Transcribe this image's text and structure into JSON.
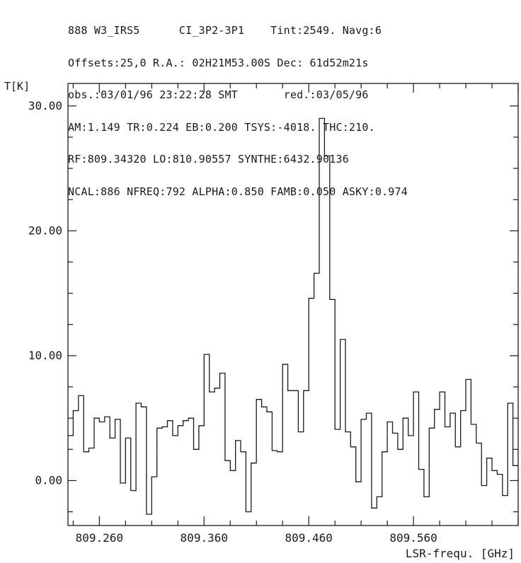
{
  "header_lines": [
    "888 W3_IRS5      CI_3P2-3P1    Tint:2549. Navg:6",
    "Offsets:25,0 R.A.: 02H21M53.00S Dec: 61d52m21s",
    "obs.:03/01/96 23:22:28 SMT       red.:03/05/96",
    "AM:1.149 TR:0.224 EB:0.200 TSYS:-4018. THC:210.",
    "RF:809.34320 LO:810.90557 SYNTHE:6432.90136",
    "NCAL:886 NFREQ:792 ALPHA:0.850 FAMB:0.050 ASKY:0.974"
  ],
  "chart_data": {
    "type": "line",
    "style": "step",
    "ylabel": "T[K]",
    "xlabel": "LSR-frequ. [GHz]",
    "x_tick_labels": [
      "809.260",
      "809.360",
      "809.460",
      "809.560"
    ],
    "y_tick_labels": [
      "0.00",
      "10.00",
      "20.00",
      "30.00"
    ],
    "x_ticks": [
      809.26,
      809.36,
      809.46,
      809.56
    ],
    "y_ticks": [
      0,
      10,
      20,
      30
    ],
    "xlim": [
      809.23,
      809.66
    ],
    "ylim": [
      -3.6,
      31.8
    ],
    "grid": false,
    "series": [
      {
        "x": [
          809.23,
          809.235,
          809.24,
          809.245,
          809.25,
          809.255,
          809.26,
          809.265,
          809.27,
          809.275,
          809.28,
          809.285,
          809.29,
          809.295,
          809.3,
          809.305,
          809.31,
          809.315,
          809.32,
          809.325,
          809.33,
          809.335,
          809.34,
          809.345,
          809.35,
          809.355,
          809.36,
          809.365,
          809.37,
          809.375,
          809.38,
          809.385,
          809.39,
          809.395,
          809.4,
          809.405,
          809.41,
          809.415,
          809.42,
          809.425,
          809.43,
          809.435,
          809.44,
          809.445,
          809.45,
          809.455,
          809.46,
          809.465,
          809.47,
          809.475,
          809.48,
          809.485,
          809.49,
          809.495,
          809.5,
          809.505,
          809.51,
          809.515,
          809.52,
          809.525,
          809.53,
          809.535,
          809.54,
          809.545,
          809.55,
          809.555,
          809.56,
          809.565,
          809.57,
          809.575,
          809.58,
          809.585,
          809.59,
          809.595,
          809.6,
          809.605,
          809.61,
          809.615,
          809.62,
          809.625,
          809.63,
          809.635,
          809.64,
          809.645,
          809.65,
          809.655
        ],
        "y": [
          3.6,
          5.6,
          6.8,
          2.3,
          2.6,
          5.0,
          4.7,
          5.1,
          3.4,
          4.9,
          -0.2,
          3.4,
          -0.8,
          6.2,
          5.9,
          -2.7,
          0.3,
          4.2,
          4.3,
          4.8,
          3.6,
          4.4,
          4.8,
          5.0,
          2.5,
          4.4,
          10.1,
          7.1,
          7.4,
          8.6,
          1.6,
          0.8,
          3.2,
          2.3,
          -2.5,
          1.4,
          6.5,
          5.9,
          5.5,
          2.4,
          2.3,
          9.3,
          7.2,
          7.2,
          3.9,
          7.2,
          14.6,
          16.6,
          29.0,
          26.0,
          14.5,
          4.1,
          11.3,
          3.9,
          2.7,
          -0.1,
          4.9,
          5.4,
          -2.2,
          -1.3,
          2.3,
          4.7,
          3.8,
          2.5,
          5.0,
          3.6,
          7.1,
          0.9,
          -1.3,
          4.2,
          5.7,
          7.1,
          4.3,
          5.4,
          2.7,
          5.6,
          8.1,
          4.5,
          3.0,
          -0.4,
          1.8,
          0.8,
          0.5,
          -1.2,
          6.2,
          1.2
        ]
      }
    ]
  }
}
